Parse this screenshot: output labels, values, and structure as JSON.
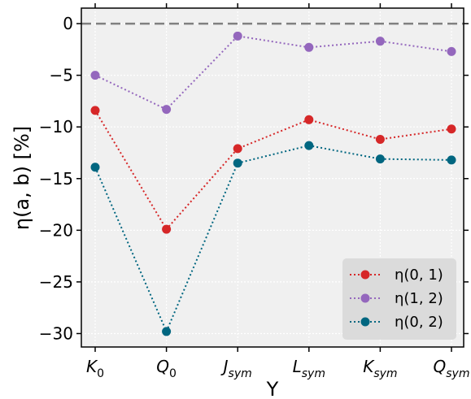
{
  "chart_data": {
    "type": "line",
    "xlabel": "Y",
    "ylabel": "η(a, b) [%]",
    "categories": [
      {
        "main": "K",
        "sub": "0"
      },
      {
        "main": "Q",
        "sub": "0"
      },
      {
        "main": "J",
        "sub": "sym"
      },
      {
        "main": "L",
        "sub": "sym"
      },
      {
        "main": "K",
        "sub": "sym"
      },
      {
        "main": "Q",
        "sub": "sym"
      }
    ],
    "ylim": [
      -31.3,
      1.5
    ],
    "yticks": [
      0,
      -5,
      -10,
      -15,
      -20,
      -25,
      -30
    ],
    "ytick_labels": [
      "0",
      "−5",
      "−10",
      "−15",
      "−20",
      "−25",
      "−30"
    ],
    "reference_line": {
      "y": 0,
      "style": "dashed",
      "color": "#808080"
    },
    "grid": true,
    "legend_position": "lower-right",
    "series": [
      {
        "name": "η(0, 1)",
        "color": "#d62728",
        "values": [
          -8.4,
          -19.9,
          -12.1,
          -9.3,
          -11.2,
          -10.2
        ]
      },
      {
        "name": "η(1, 2)",
        "color": "#9467bd",
        "values": [
          -5.0,
          -8.3,
          -1.2,
          -2.3,
          -1.7,
          -2.7
        ]
      },
      {
        "name": "η(0, 2)",
        "color": "#006680",
        "values": [
          -13.9,
          -29.8,
          -13.5,
          -11.8,
          -13.1,
          -13.2
        ]
      }
    ]
  }
}
